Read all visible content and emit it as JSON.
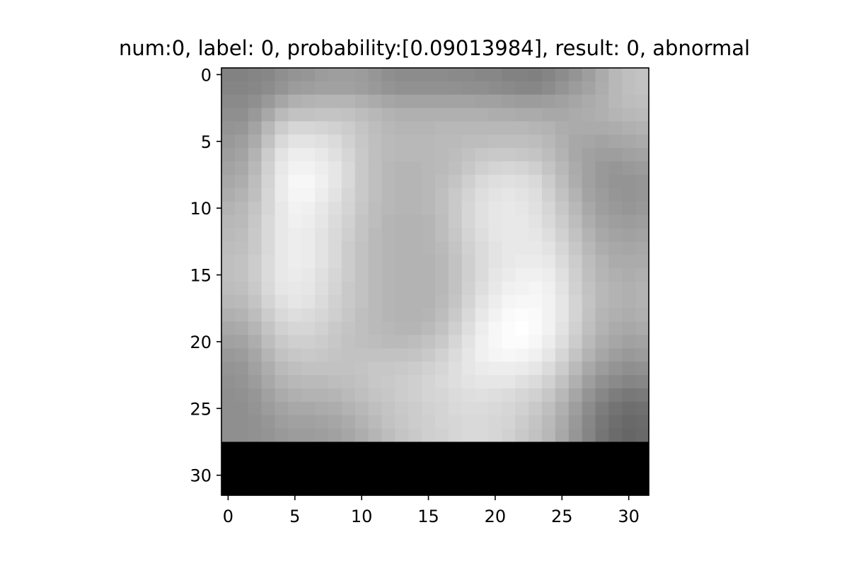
{
  "chart_data": {
    "type": "heatmap",
    "title": "num:0, label: 0, probability:[0.09013984], result: 0, abnormal",
    "xlabel": "",
    "ylabel": "",
    "colormap": "gray",
    "value_range": [
      0,
      1
    ],
    "xlim": [
      -0.5,
      31.5
    ],
    "ylim": [
      31.5,
      -0.5
    ],
    "y_axis_inverted": true,
    "grid": false,
    "x_ticks": [
      0,
      5,
      10,
      15,
      20,
      25,
      30
    ],
    "y_ticks": [
      0,
      5,
      10,
      15,
      20,
      25,
      30
    ],
    "x_tick_labels": [
      "0",
      "5",
      "10",
      "15",
      "20",
      "25",
      "30"
    ],
    "y_tick_labels": [
      "0",
      "5",
      "10",
      "15",
      "20",
      "25",
      "30"
    ],
    "rows": 32,
    "cols": 32,
    "values": [
      [
        0.51,
        0.51,
        0.52,
        0.53,
        0.56,
        0.58,
        0.59,
        0.61,
        0.62,
        0.62,
        0.61,
        0.59,
        0.56,
        0.55,
        0.55,
        0.55,
        0.55,
        0.54,
        0.54,
        0.53,
        0.53,
        0.51,
        0.51,
        0.5,
        0.52,
        0.55,
        0.58,
        0.62,
        0.67,
        0.72,
        0.75,
        0.76
      ],
      [
        0.52,
        0.52,
        0.53,
        0.55,
        0.58,
        0.61,
        0.62,
        0.63,
        0.63,
        0.63,
        0.62,
        0.6,
        0.58,
        0.57,
        0.57,
        0.57,
        0.57,
        0.57,
        0.56,
        0.56,
        0.55,
        0.54,
        0.53,
        0.53,
        0.55,
        0.58,
        0.61,
        0.64,
        0.68,
        0.72,
        0.75,
        0.76
      ],
      [
        0.54,
        0.54,
        0.56,
        0.6,
        0.65,
        0.69,
        0.7,
        0.71,
        0.71,
        0.71,
        0.69,
        0.67,
        0.65,
        0.64,
        0.64,
        0.64,
        0.64,
        0.64,
        0.64,
        0.63,
        0.63,
        0.62,
        0.61,
        0.61,
        0.62,
        0.63,
        0.65,
        0.67,
        0.69,
        0.72,
        0.74,
        0.75
      ],
      [
        0.56,
        0.56,
        0.6,
        0.66,
        0.73,
        0.76,
        0.76,
        0.77,
        0.77,
        0.76,
        0.74,
        0.72,
        0.7,
        0.69,
        0.69,
        0.69,
        0.69,
        0.69,
        0.69,
        0.69,
        0.68,
        0.68,
        0.67,
        0.67,
        0.66,
        0.66,
        0.67,
        0.68,
        0.69,
        0.71,
        0.72,
        0.73
      ],
      [
        0.58,
        0.59,
        0.64,
        0.72,
        0.8,
        0.84,
        0.84,
        0.83,
        0.82,
        0.8,
        0.77,
        0.74,
        0.72,
        0.71,
        0.71,
        0.71,
        0.72,
        0.72,
        0.72,
        0.72,
        0.72,
        0.72,
        0.72,
        0.71,
        0.7,
        0.68,
        0.67,
        0.67,
        0.67,
        0.68,
        0.69,
        0.7
      ],
      [
        0.6,
        0.62,
        0.67,
        0.76,
        0.85,
        0.89,
        0.89,
        0.88,
        0.86,
        0.82,
        0.78,
        0.75,
        0.73,
        0.72,
        0.72,
        0.72,
        0.73,
        0.73,
        0.74,
        0.74,
        0.75,
        0.75,
        0.75,
        0.74,
        0.72,
        0.69,
        0.66,
        0.65,
        0.64,
        0.65,
        0.66,
        0.67
      ],
      [
        0.62,
        0.64,
        0.7,
        0.8,
        0.89,
        0.93,
        0.93,
        0.91,
        0.88,
        0.84,
        0.79,
        0.75,
        0.73,
        0.72,
        0.72,
        0.72,
        0.73,
        0.74,
        0.76,
        0.78,
        0.79,
        0.79,
        0.78,
        0.77,
        0.74,
        0.7,
        0.66,
        0.63,
        0.62,
        0.62,
        0.63,
        0.64
      ],
      [
        0.64,
        0.66,
        0.72,
        0.82,
        0.91,
        0.95,
        0.95,
        0.93,
        0.9,
        0.85,
        0.79,
        0.75,
        0.72,
        0.71,
        0.71,
        0.72,
        0.73,
        0.75,
        0.78,
        0.81,
        0.83,
        0.84,
        0.83,
        0.81,
        0.77,
        0.72,
        0.67,
        0.63,
        0.6,
        0.59,
        0.6,
        0.61
      ],
      [
        0.66,
        0.68,
        0.74,
        0.83,
        0.92,
        0.97,
        0.97,
        0.94,
        0.9,
        0.85,
        0.79,
        0.75,
        0.72,
        0.71,
        0.71,
        0.72,
        0.74,
        0.77,
        0.81,
        0.85,
        0.87,
        0.88,
        0.87,
        0.85,
        0.8,
        0.74,
        0.68,
        0.63,
        0.6,
        0.58,
        0.58,
        0.59
      ],
      [
        0.68,
        0.7,
        0.75,
        0.84,
        0.92,
        0.96,
        0.96,
        0.93,
        0.89,
        0.84,
        0.79,
        0.75,
        0.72,
        0.71,
        0.71,
        0.72,
        0.75,
        0.79,
        0.83,
        0.87,
        0.89,
        0.9,
        0.89,
        0.87,
        0.82,
        0.76,
        0.7,
        0.64,
        0.61,
        0.59,
        0.58,
        0.59
      ],
      [
        0.7,
        0.72,
        0.77,
        0.84,
        0.91,
        0.95,
        0.94,
        0.91,
        0.87,
        0.83,
        0.78,
        0.74,
        0.72,
        0.71,
        0.71,
        0.72,
        0.75,
        0.79,
        0.84,
        0.88,
        0.9,
        0.91,
        0.9,
        0.88,
        0.84,
        0.78,
        0.72,
        0.66,
        0.62,
        0.6,
        0.59,
        0.6
      ],
      [
        0.72,
        0.73,
        0.78,
        0.85,
        0.91,
        0.94,
        0.93,
        0.9,
        0.86,
        0.82,
        0.77,
        0.74,
        0.71,
        0.7,
        0.7,
        0.71,
        0.74,
        0.79,
        0.84,
        0.88,
        0.9,
        0.91,
        0.91,
        0.89,
        0.85,
        0.8,
        0.74,
        0.68,
        0.64,
        0.62,
        0.61,
        0.62
      ],
      [
        0.73,
        0.74,
        0.79,
        0.85,
        0.91,
        0.93,
        0.92,
        0.89,
        0.85,
        0.81,
        0.77,
        0.73,
        0.71,
        0.7,
        0.7,
        0.71,
        0.74,
        0.78,
        0.83,
        0.87,
        0.9,
        0.91,
        0.91,
        0.9,
        0.87,
        0.82,
        0.76,
        0.7,
        0.66,
        0.64,
        0.63,
        0.64
      ],
      [
        0.74,
        0.75,
        0.79,
        0.85,
        0.91,
        0.93,
        0.92,
        0.89,
        0.85,
        0.8,
        0.76,
        0.73,
        0.71,
        0.7,
        0.7,
        0.71,
        0.73,
        0.77,
        0.82,
        0.86,
        0.89,
        0.91,
        0.91,
        0.91,
        0.89,
        0.84,
        0.78,
        0.72,
        0.68,
        0.66,
        0.65,
        0.66
      ],
      [
        0.75,
        0.76,
        0.8,
        0.86,
        0.91,
        0.93,
        0.92,
        0.89,
        0.85,
        0.8,
        0.76,
        0.73,
        0.71,
        0.7,
        0.7,
        0.7,
        0.72,
        0.76,
        0.81,
        0.86,
        0.89,
        0.91,
        0.92,
        0.92,
        0.91,
        0.86,
        0.8,
        0.74,
        0.7,
        0.67,
        0.67,
        0.67
      ],
      [
        0.75,
        0.76,
        0.8,
        0.86,
        0.91,
        0.92,
        0.91,
        0.88,
        0.84,
        0.8,
        0.76,
        0.73,
        0.71,
        0.7,
        0.7,
        0.7,
        0.72,
        0.76,
        0.81,
        0.86,
        0.9,
        0.92,
        0.94,
        0.94,
        0.93,
        0.88,
        0.81,
        0.75,
        0.71,
        0.69,
        0.68,
        0.69
      ],
      [
        0.74,
        0.75,
        0.79,
        0.85,
        0.9,
        0.91,
        0.9,
        0.87,
        0.83,
        0.79,
        0.76,
        0.73,
        0.71,
        0.7,
        0.7,
        0.7,
        0.72,
        0.76,
        0.82,
        0.87,
        0.91,
        0.94,
        0.95,
        0.96,
        0.94,
        0.89,
        0.82,
        0.76,
        0.72,
        0.7,
        0.69,
        0.7
      ],
      [
        0.72,
        0.73,
        0.77,
        0.83,
        0.88,
        0.9,
        0.89,
        0.86,
        0.82,
        0.79,
        0.76,
        0.73,
        0.71,
        0.7,
        0.7,
        0.7,
        0.73,
        0.77,
        0.83,
        0.89,
        0.93,
        0.96,
        0.97,
        0.97,
        0.95,
        0.9,
        0.83,
        0.77,
        0.72,
        0.7,
        0.69,
        0.7
      ],
      [
        0.69,
        0.7,
        0.74,
        0.8,
        0.85,
        0.87,
        0.86,
        0.84,
        0.81,
        0.78,
        0.75,
        0.73,
        0.71,
        0.7,
        0.7,
        0.71,
        0.74,
        0.79,
        0.85,
        0.91,
        0.95,
        0.98,
        0.99,
        0.98,
        0.95,
        0.9,
        0.83,
        0.76,
        0.71,
        0.69,
        0.68,
        0.69
      ],
      [
        0.66,
        0.67,
        0.71,
        0.77,
        0.82,
        0.84,
        0.84,
        0.82,
        0.79,
        0.77,
        0.75,
        0.73,
        0.72,
        0.71,
        0.71,
        0.73,
        0.76,
        0.81,
        0.87,
        0.93,
        0.97,
        0.99,
        1.0,
        0.98,
        0.95,
        0.89,
        0.82,
        0.75,
        0.7,
        0.67,
        0.66,
        0.67
      ],
      [
        0.63,
        0.64,
        0.68,
        0.74,
        0.79,
        0.81,
        0.81,
        0.8,
        0.78,
        0.76,
        0.75,
        0.74,
        0.73,
        0.73,
        0.74,
        0.76,
        0.79,
        0.84,
        0.89,
        0.94,
        0.97,
        0.99,
        0.99,
        0.97,
        0.93,
        0.87,
        0.8,
        0.73,
        0.68,
        0.65,
        0.63,
        0.64
      ],
      [
        0.6,
        0.61,
        0.65,
        0.71,
        0.76,
        0.78,
        0.79,
        0.78,
        0.77,
        0.76,
        0.76,
        0.76,
        0.76,
        0.76,
        0.77,
        0.79,
        0.82,
        0.86,
        0.9,
        0.94,
        0.96,
        0.97,
        0.96,
        0.94,
        0.9,
        0.84,
        0.77,
        0.7,
        0.65,
        0.62,
        0.6,
        0.61
      ],
      [
        0.58,
        0.59,
        0.63,
        0.68,
        0.73,
        0.75,
        0.76,
        0.76,
        0.76,
        0.76,
        0.77,
        0.78,
        0.78,
        0.79,
        0.8,
        0.82,
        0.84,
        0.87,
        0.9,
        0.92,
        0.93,
        0.93,
        0.92,
        0.9,
        0.86,
        0.8,
        0.73,
        0.66,
        0.61,
        0.58,
        0.56,
        0.57
      ],
      [
        0.57,
        0.58,
        0.61,
        0.66,
        0.7,
        0.72,
        0.73,
        0.73,
        0.74,
        0.75,
        0.76,
        0.78,
        0.79,
        0.8,
        0.81,
        0.83,
        0.85,
        0.87,
        0.89,
        0.9,
        0.9,
        0.9,
        0.88,
        0.86,
        0.82,
        0.76,
        0.69,
        0.62,
        0.57,
        0.54,
        0.52,
        0.53
      ],
      [
        0.56,
        0.57,
        0.59,
        0.63,
        0.67,
        0.69,
        0.7,
        0.7,
        0.71,
        0.73,
        0.75,
        0.77,
        0.78,
        0.8,
        0.81,
        0.83,
        0.84,
        0.86,
        0.87,
        0.88,
        0.87,
        0.86,
        0.84,
        0.82,
        0.78,
        0.72,
        0.65,
        0.58,
        0.53,
        0.49,
        0.47,
        0.48
      ],
      [
        0.56,
        0.56,
        0.58,
        0.61,
        0.64,
        0.66,
        0.66,
        0.67,
        0.68,
        0.7,
        0.72,
        0.75,
        0.77,
        0.79,
        0.8,
        0.82,
        0.83,
        0.85,
        0.86,
        0.86,
        0.85,
        0.84,
        0.82,
        0.79,
        0.75,
        0.69,
        0.62,
        0.55,
        0.49,
        0.45,
        0.43,
        0.44
      ],
      [
        0.56,
        0.56,
        0.57,
        0.59,
        0.62,
        0.63,
        0.63,
        0.64,
        0.65,
        0.67,
        0.7,
        0.73,
        0.76,
        0.78,
        0.8,
        0.81,
        0.83,
        0.84,
        0.85,
        0.85,
        0.84,
        0.83,
        0.8,
        0.77,
        0.73,
        0.67,
        0.6,
        0.53,
        0.47,
        0.43,
        0.41,
        0.42
      ],
      [
        0.56,
        0.56,
        0.57,
        0.58,
        0.6,
        0.61,
        0.61,
        0.62,
        0.63,
        0.65,
        0.68,
        0.71,
        0.74,
        0.77,
        0.79,
        0.81,
        0.82,
        0.84,
        0.85,
        0.85,
        0.84,
        0.82,
        0.79,
        0.76,
        0.72,
        0.66,
        0.59,
        0.52,
        0.46,
        0.42,
        0.4,
        0.41
      ],
      [
        0,
        0,
        0,
        0,
        0,
        0,
        0,
        0,
        0,
        0,
        0,
        0,
        0,
        0,
        0,
        0,
        0,
        0,
        0,
        0,
        0,
        0,
        0,
        0,
        0,
        0,
        0,
        0,
        0,
        0,
        0,
        0
      ],
      [
        0,
        0,
        0,
        0,
        0,
        0,
        0,
        0,
        0,
        0,
        0,
        0,
        0,
        0,
        0,
        0,
        0,
        0,
        0,
        0,
        0,
        0,
        0,
        0,
        0,
        0,
        0,
        0,
        0,
        0,
        0,
        0
      ],
      [
        0,
        0,
        0,
        0,
        0,
        0,
        0,
        0,
        0,
        0,
        0,
        0,
        0,
        0,
        0,
        0,
        0,
        0,
        0,
        0,
        0,
        0,
        0,
        0,
        0,
        0,
        0,
        0,
        0,
        0,
        0,
        0
      ],
      [
        0,
        0,
        0,
        0,
        0,
        0,
        0,
        0,
        0,
        0,
        0,
        0,
        0,
        0,
        0,
        0,
        0,
        0,
        0,
        0,
        0,
        0,
        0,
        0,
        0,
        0,
        0,
        0,
        0,
        0,
        0,
        0
      ]
    ]
  }
}
